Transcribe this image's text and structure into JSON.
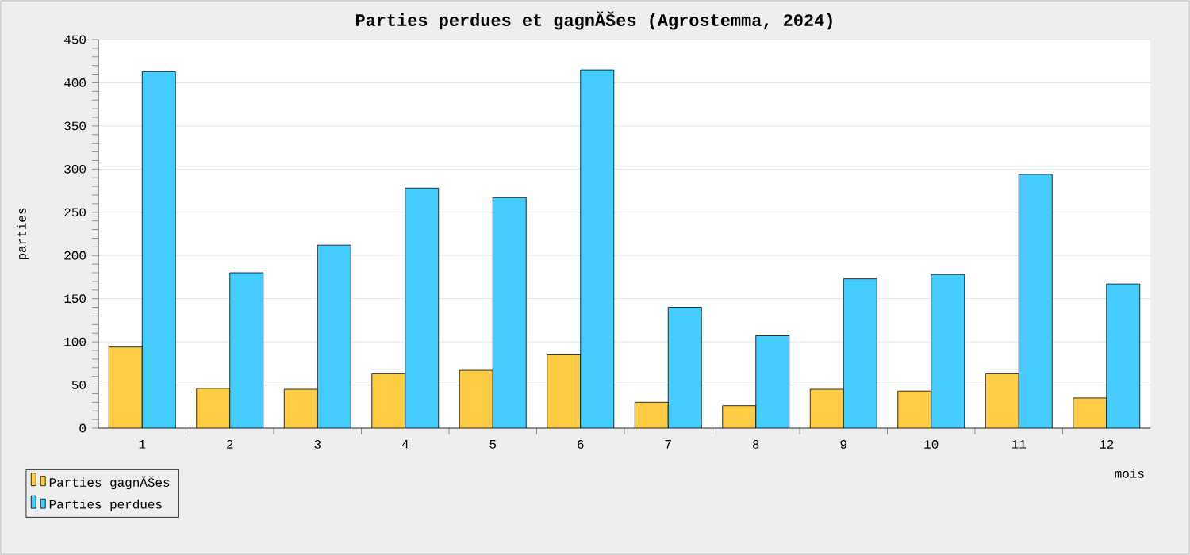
{
  "chart_data": {
    "type": "bar",
    "title": "Parties perdues et gagnĂŠes (Agrostemma, 2024)",
    "xlabel": "mois",
    "ylabel": "parties",
    "categories": [
      "1",
      "2",
      "3",
      "4",
      "5",
      "6",
      "7",
      "8",
      "9",
      "10",
      "11",
      "12"
    ],
    "series": [
      {
        "name": "Parties gagnĂŠes",
        "color": "#ffcc44",
        "values": [
          94,
          46,
          45,
          63,
          67,
          85,
          30,
          26,
          45,
          43,
          63,
          35
        ]
      },
      {
        "name": "Parties perdues",
        "color": "#44ccff",
        "values": [
          413,
          180,
          212,
          278,
          267,
          415,
          140,
          107,
          173,
          178,
          294,
          167
        ]
      }
    ],
    "ylim": [
      0,
      450
    ],
    "yticks": [
      0,
      50,
      100,
      150,
      200,
      250,
      300,
      350,
      400,
      450
    ],
    "grid": "y",
    "legend": "bottom left"
  }
}
